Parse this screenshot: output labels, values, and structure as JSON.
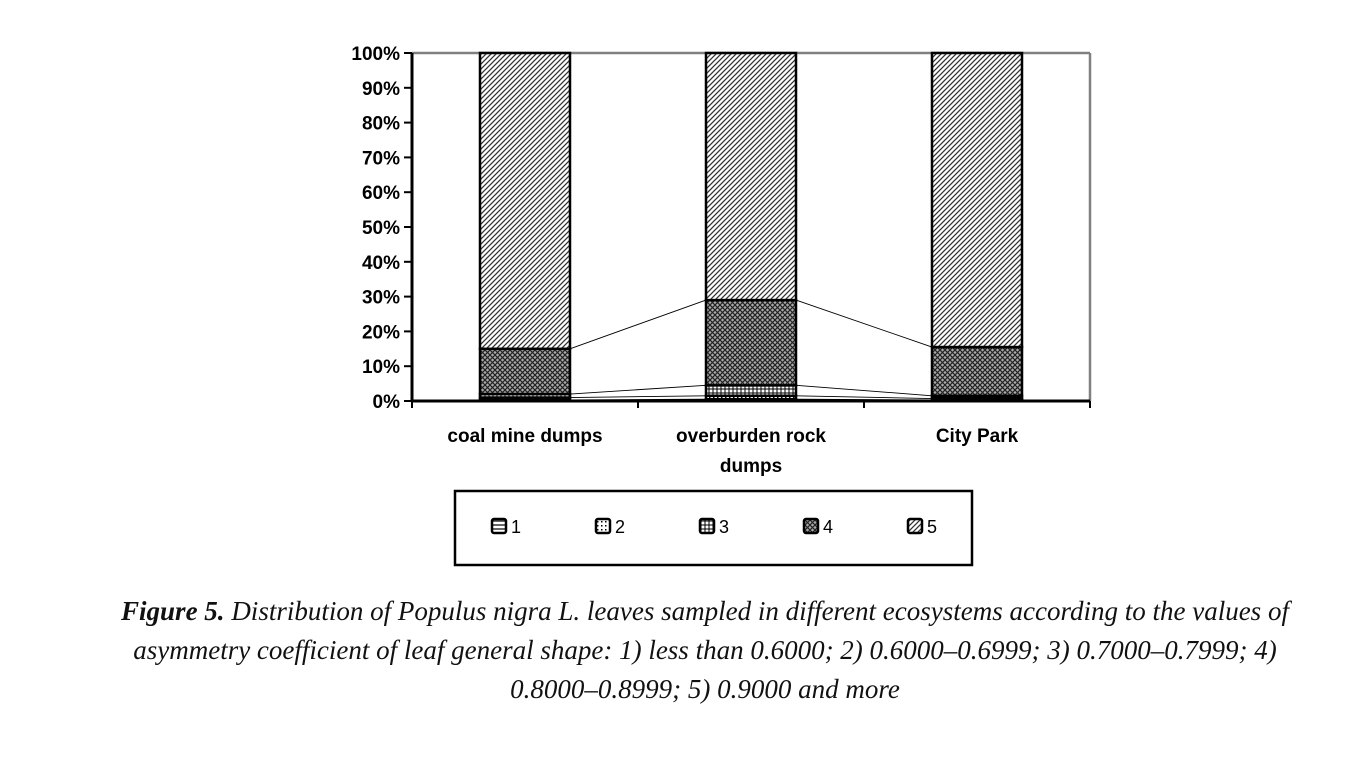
{
  "chart_data": {
    "type": "bar",
    "stacked": true,
    "categories": [
      [
        "coal mine dumps"
      ],
      [
        "overburden rock",
        "dumps"
      ],
      [
        "City Park"
      ]
    ],
    "series": [
      {
        "name": "1",
        "values": [
          0.3,
          0.5,
          0.3
        ],
        "pattern": "horizontal-lines"
      },
      {
        "name": "2",
        "values": [
          0.7,
          1.0,
          0.4
        ],
        "pattern": "dots"
      },
      {
        "name": "3",
        "values": [
          1.0,
          3.0,
          0.8
        ],
        "pattern": "grid"
      },
      {
        "name": "4",
        "values": [
          13.0,
          24.5,
          14.0
        ],
        "pattern": "crosshatch"
      },
      {
        "name": "5",
        "values": [
          85.0,
          71.0,
          84.5
        ],
        "pattern": "diagonal"
      }
    ],
    "yticks": [
      "0%",
      "10%",
      "20%",
      "30%",
      "40%",
      "50%",
      "60%",
      "70%",
      "80%",
      "90%",
      "100%"
    ],
    "ylim": [
      0,
      100
    ],
    "grid": false,
    "legend_position": "bottom"
  },
  "caption": {
    "label": "Figure 5.",
    "text": " Distribution of Populus nigra L. leaves sampled in different ecosystems according to the values of asymmetry coefficient of leaf general shape: 1) less than 0.6000; 2) 0.6000–0.6999; 3) 0.7000–0.7999; 4) 0.8000–0.8999; 5) 0.9000 and more"
  }
}
